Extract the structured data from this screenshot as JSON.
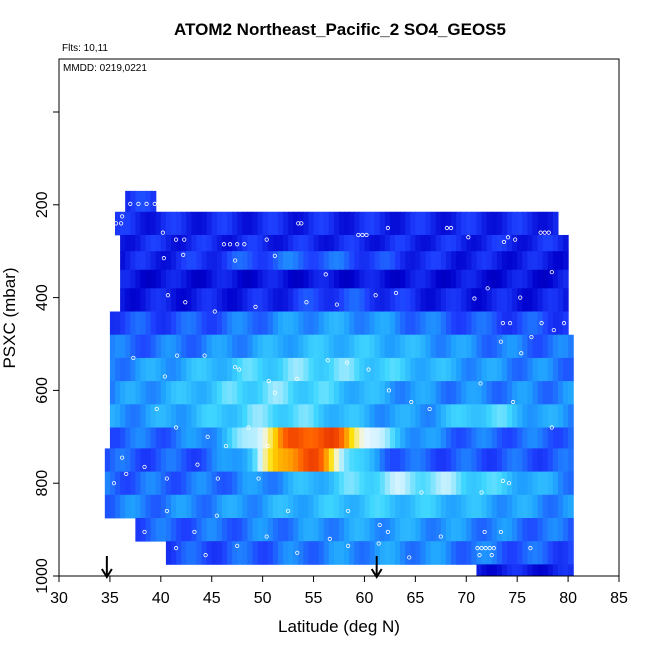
{
  "chart_data": {
    "type": "heatmap",
    "title": "ATOM2 Northeast_Pacific_2 SO4_GEOS5",
    "notes": [
      "Flts: 10,11",
      "MMDD: 0219,0221"
    ],
    "xlabel": "Latitude (deg N)",
    "ylabel": "PSXC (mbar)",
    "xlim": [
      30,
      85
    ],
    "ylim": [
      1000,
      0
    ],
    "x_ticks": [
      "30",
      "35",
      "40",
      "45",
      "50",
      "55",
      "60",
      "65",
      "70",
      "75",
      "80",
      "85"
    ],
    "y_ticks": [
      "200",
      "400",
      "600",
      "800",
      "1000"
    ],
    "markers": [
      {
        "x": 34.7,
        "direction": "down"
      },
      {
        "x": 61.2,
        "direction": "down"
      }
    ],
    "colormap": [
      "#000080",
      "#0000cd",
      "#1e40ff",
      "#1fa0ff",
      "#40d8ff",
      "#f0f8ff",
      "#ffe000",
      "#ff6000",
      "#cc0000"
    ],
    "colors": {
      "axis": "#000000",
      "point": "#ffffff",
      "background": "#ffffff"
    },
    "rows": [
      {
        "p0": 170,
        "p1": 215,
        "x0": 36.5,
        "x1": 39.5,
        "base": 0.22
      },
      {
        "p0": 215,
        "p1": 265,
        "x0": 35.5,
        "x1": 79,
        "base": 0.2
      },
      {
        "p0": 265,
        "p1": 300,
        "x0": 36,
        "x1": 80,
        "base": 0.2
      },
      {
        "p0": 300,
        "p1": 340,
        "x0": 36,
        "x1": 80,
        "base": 0.18,
        "peaks": [
          {
            "c": 54,
            "w": 10,
            "a": 0.12
          }
        ]
      },
      {
        "p0": 340,
        "p1": 380,
        "x0": 36,
        "x1": 80,
        "base": 0.16
      },
      {
        "p0": 380,
        "p1": 430,
        "x0": 36,
        "x1": 80,
        "base": 0.18,
        "peaks": [
          {
            "c": 58,
            "w": 6,
            "a": 0.08
          }
        ]
      },
      {
        "p0": 430,
        "p1": 480,
        "x0": 35,
        "x1": 80,
        "base": 0.26,
        "peaks": [
          {
            "c": 57,
            "w": 10,
            "a": 0.12
          }
        ]
      },
      {
        "p0": 480,
        "p1": 530,
        "x0": 35,
        "x1": 80.5,
        "base": 0.3,
        "peaks": [
          {
            "c": 58,
            "w": 12,
            "a": 0.14
          }
        ]
      },
      {
        "p0": 530,
        "p1": 580,
        "x0": 35,
        "x1": 80.5,
        "base": 0.32,
        "peaks": [
          {
            "c": 55,
            "w": 14,
            "a": 0.2
          }
        ]
      },
      {
        "p0": 580,
        "p1": 630,
        "x0": 35,
        "x1": 80.5,
        "base": 0.34,
        "peaks": [
          {
            "c": 51,
            "w": 10,
            "a": 0.18
          }
        ]
      },
      {
        "p0": 630,
        "p1": 680,
        "x0": 35,
        "x1": 80.5,
        "base": 0.36,
        "peaks": [
          {
            "c": 51,
            "w": 8,
            "a": 0.16
          },
          {
            "c": 72,
            "w": 4,
            "a": 0.14
          }
        ]
      },
      {
        "p0": 680,
        "p1": 725,
        "x0": 35,
        "x1": 80.5,
        "base": 0.3,
        "peaks": [
          {
            "c": 55,
            "w": 7,
            "a": 0.62
          }
        ]
      },
      {
        "p0": 725,
        "p1": 775,
        "x0": 34.5,
        "x1": 80.5,
        "base": 0.28,
        "peaks": [
          {
            "c": 54,
            "w": 5,
            "a": 0.62
          }
        ]
      },
      {
        "p0": 775,
        "p1": 825,
        "x0": 34.5,
        "x1": 80.5,
        "base": 0.3,
        "peaks": [
          {
            "c": 65,
            "w": 12,
            "a": 0.26
          }
        ]
      },
      {
        "p0": 825,
        "p1": 875,
        "x0": 34.5,
        "x1": 80.5,
        "base": 0.32,
        "peaks": [
          {
            "c": 62,
            "w": 14,
            "a": 0.14
          }
        ]
      },
      {
        "p0": 875,
        "p1": 925,
        "x0": 37.5,
        "x1": 80.5,
        "base": 0.28,
        "peaks": [
          {
            "c": 62,
            "w": 14,
            "a": 0.1
          }
        ]
      },
      {
        "p0": 925,
        "p1": 975,
        "x0": 40.5,
        "x1": 80.5,
        "base": 0.26,
        "peaks": [
          {
            "c": 62,
            "w": 12,
            "a": 0.1
          }
        ]
      },
      {
        "p0": 975,
        "p1": 1000,
        "x0": 71,
        "x1": 80.5,
        "base": 0.18
      }
    ],
    "points": [
      [
        37,
        198
      ],
      [
        37.8,
        198
      ],
      [
        38.6,
        198
      ],
      [
        39.4,
        198
      ],
      [
        35.8,
        210
      ],
      [
        36.2,
        225
      ],
      [
        35.6,
        240
      ],
      [
        36.1,
        240
      ],
      [
        40.2,
        260
      ],
      [
        41.5,
        275
      ],
      [
        42.3,
        275
      ],
      [
        46.2,
        285
      ],
      [
        46.8,
        285
      ],
      [
        47.5,
        285
      ],
      [
        48.2,
        285
      ],
      [
        50.4,
        275
      ],
      [
        53.5,
        240
      ],
      [
        53.8,
        240
      ],
      [
        59.4,
        265
      ],
      [
        59.8,
        265
      ],
      [
        60.2,
        265
      ],
      [
        62.3,
        250
      ],
      [
        68.1,
        250
      ],
      [
        68.5,
        250
      ],
      [
        70.2,
        270
      ],
      [
        73.7,
        280
      ],
      [
        77.3,
        260
      ],
      [
        77.7,
        260
      ],
      [
        78.1,
        260
      ],
      [
        79.3,
        235
      ],
      [
        79.7,
        235
      ],
      [
        74.1,
        270
      ],
      [
        74.8,
        275
      ],
      [
        40.3,
        315
      ],
      [
        42.2,
        308
      ],
      [
        47.3,
        320
      ],
      [
        51.2,
        310
      ],
      [
        56.2,
        350
      ],
      [
        61.1,
        395
      ],
      [
        63.1,
        390
      ],
      [
        72.1,
        380
      ],
      [
        75.3,
        400
      ],
      [
        78.4,
        345
      ],
      [
        40.7,
        395
      ],
      [
        42.4,
        410
      ],
      [
        45.3,
        430
      ],
      [
        49.3,
        420
      ],
      [
        54.3,
        410
      ],
      [
        57.3,
        415
      ],
      [
        70.8,
        402
      ],
      [
        73.6,
        455
      ],
      [
        74.3,
        455
      ],
      [
        77.4,
        455
      ],
      [
        78.6,
        470
      ],
      [
        79.6,
        455
      ],
      [
        73.4,
        495
      ],
      [
        75.4,
        520
      ],
      [
        76.4,
        485
      ],
      [
        37.3,
        530
      ],
      [
        40.4,
        570
      ],
      [
        41.6,
        525
      ],
      [
        44.3,
        525
      ],
      [
        47.3,
        550
      ],
      [
        47.7,
        555
      ],
      [
        50.6,
        580
      ],
      [
        51.2,
        605
      ],
      [
        53.4,
        575
      ],
      [
        56.4,
        535
      ],
      [
        58.3,
        540
      ],
      [
        60.4,
        555
      ],
      [
        62.4,
        600
      ],
      [
        64.6,
        625
      ],
      [
        66.4,
        640
      ],
      [
        71.4,
        585
      ],
      [
        74.6,
        625
      ],
      [
        78.4,
        680
      ],
      [
        39.6,
        640
      ],
      [
        41.5,
        680
      ],
      [
        44.6,
        700
      ],
      [
        46.4,
        720
      ],
      [
        48.6,
        680
      ],
      [
        50.5,
        720
      ],
      [
        38.4,
        765
      ],
      [
        40.6,
        790
      ],
      [
        43.6,
        760
      ],
      [
        45.6,
        790
      ],
      [
        49.6,
        790
      ],
      [
        36.2,
        745
      ],
      [
        36.6,
        780
      ],
      [
        35.4,
        800
      ],
      [
        73.6,
        795
      ],
      [
        74.2,
        800
      ],
      [
        71.5,
        820
      ],
      [
        65.6,
        820
      ],
      [
        58.4,
        860
      ],
      [
        52.5,
        860
      ],
      [
        45.5,
        870
      ],
      [
        40.6,
        860
      ],
      [
        38.4,
        905
      ],
      [
        43.3,
        905
      ],
      [
        50.4,
        915
      ],
      [
        56.6,
        920
      ],
      [
        61.5,
        890
      ],
      [
        62.3,
        905
      ],
      [
        67.5,
        915
      ],
      [
        71.8,
        905
      ],
      [
        73.4,
        905
      ],
      [
        47.5,
        935
      ],
      [
        53.4,
        950
      ],
      [
        58.4,
        935
      ],
      [
        61.4,
        930
      ],
      [
        64.4,
        960
      ],
      [
        71.1,
        940
      ],
      [
        71.5,
        940
      ],
      [
        71.9,
        940
      ],
      [
        72.3,
        940
      ],
      [
        72.7,
        940
      ],
      [
        71.3,
        955
      ],
      [
        72.5,
        955
      ],
      [
        44.4,
        955
      ],
      [
        41.5,
        940
      ],
      [
        76.3,
        940
      ]
    ]
  }
}
